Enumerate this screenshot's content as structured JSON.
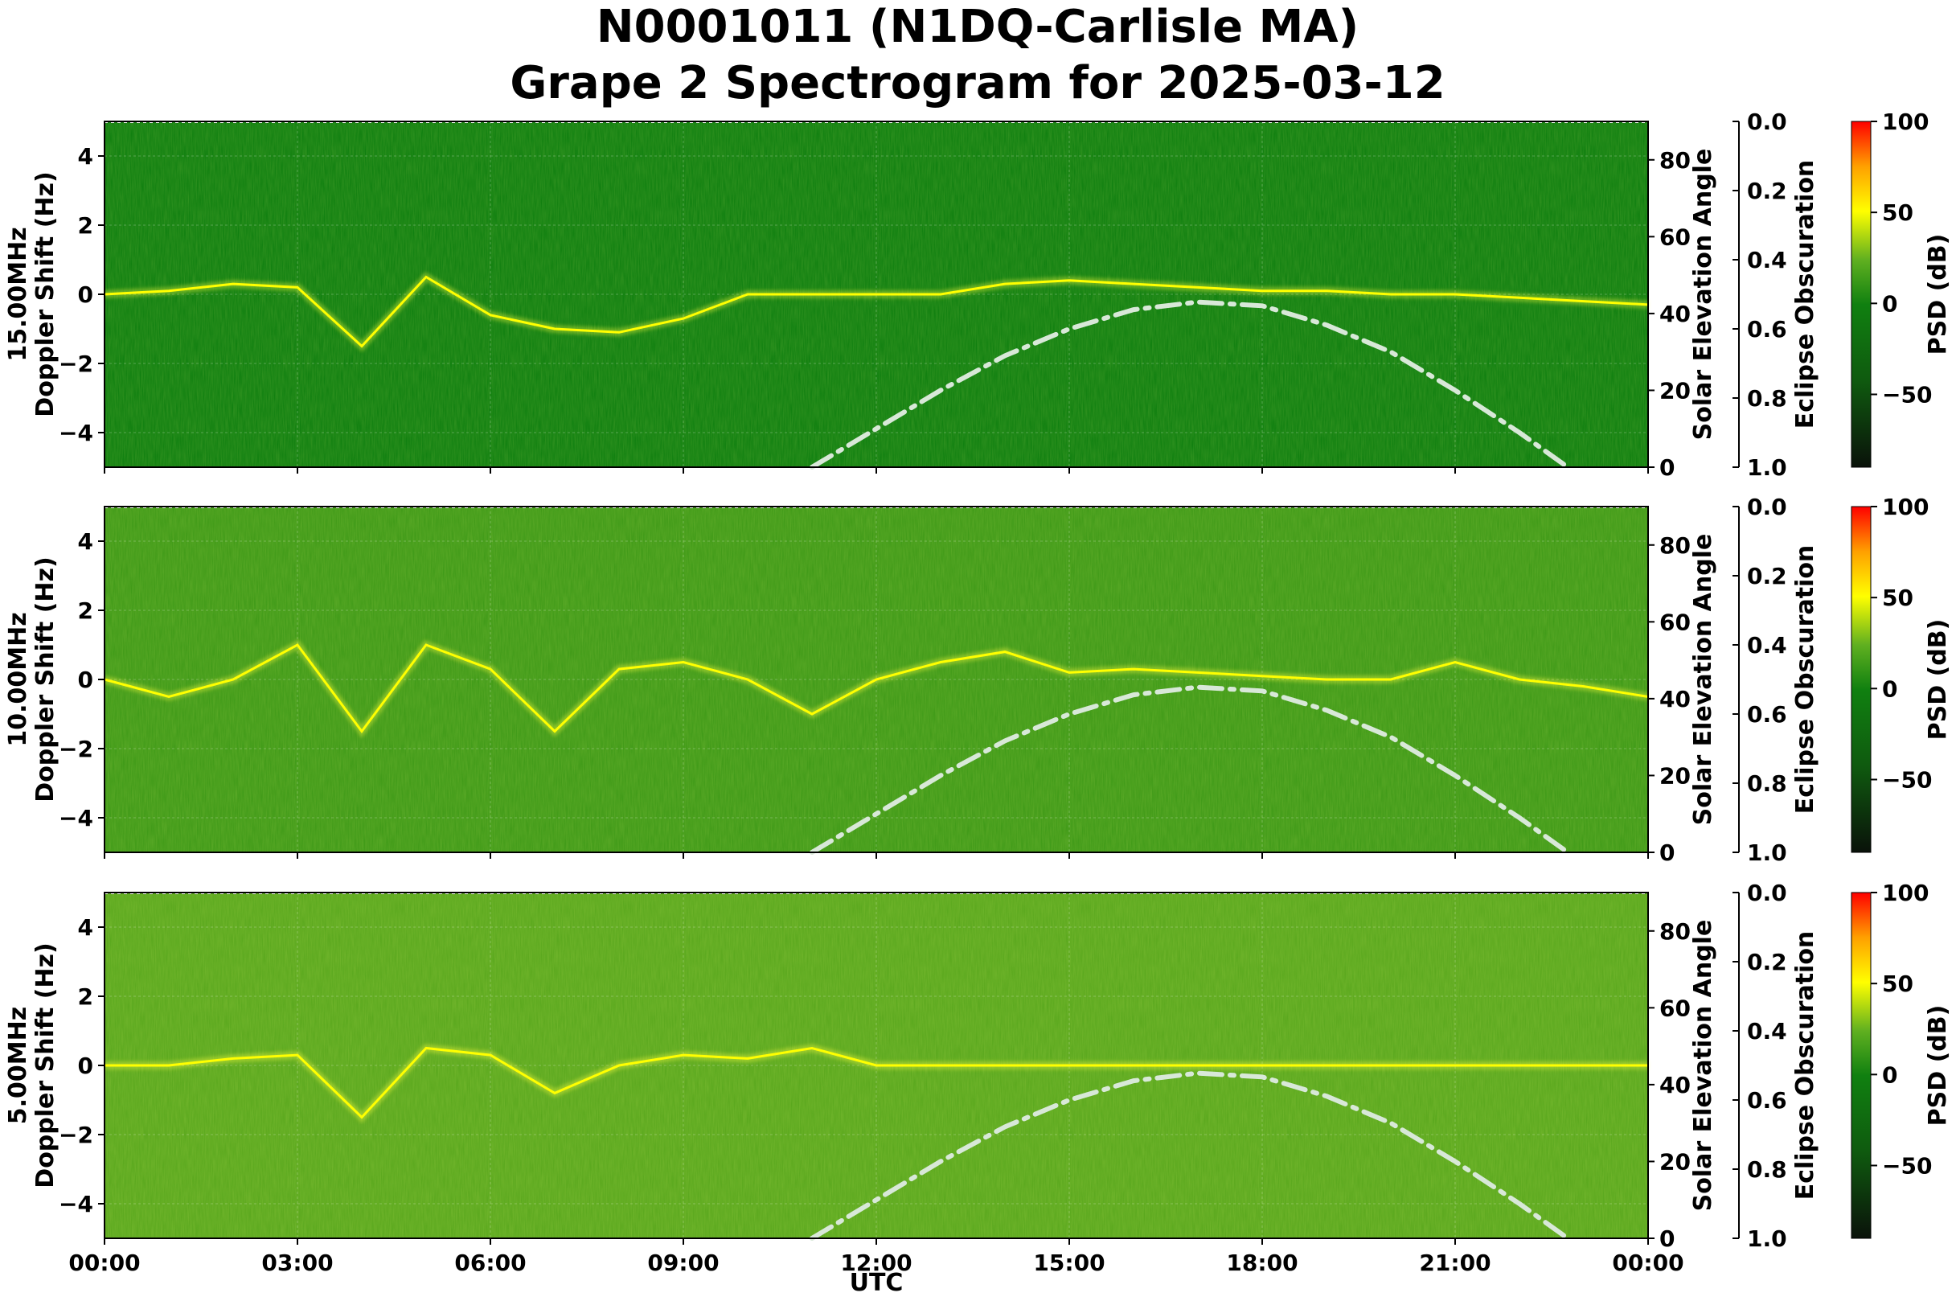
{
  "title_line1": "N0001011 (N1DQ-Carlisle MA)",
  "title_line2": "Grape 2 Spectrogram for 2025-03-12",
  "chart_data": [
    {
      "type": "heatmap",
      "panel": "15.00MHz",
      "ylabel_line1": "15.00MHz",
      "ylabel_line2": "Doppler Shift (Hz)",
      "ylim": [
        -5,
        5
      ],
      "yticks": [
        "4",
        "2",
        "0",
        "−2",
        "−4"
      ],
      "xticks": [
        "00:00",
        "03:00",
        "06:00",
        "09:00",
        "12:00",
        "15:00",
        "18:00",
        "21:00",
        "00:00"
      ],
      "doppler_trace": {
        "x": [
          0,
          1,
          2,
          3,
          4,
          5,
          6,
          7,
          8,
          9,
          10,
          11,
          12,
          13,
          14,
          15,
          16,
          17,
          18,
          19,
          20,
          21,
          22,
          23,
          24
        ],
        "y": [
          0,
          0.1,
          0.3,
          0.2,
          -1.5,
          0.5,
          -0.6,
          -1,
          -1.1,
          -0.7,
          0,
          0,
          0,
          0,
          0.3,
          0.4,
          0.3,
          0.2,
          0.1,
          0.1,
          0,
          0,
          -0.1,
          -0.2,
          -0.3
        ]
      },
      "secondary_axis": {
        "label": "Solar Elevation Angle",
        "ticks": [
          "0",
          "20",
          "40",
          "60",
          "80"
        ],
        "ylim": [
          0,
          90
        ]
      },
      "eclipse_axis": {
        "label": "Eclipse Obscuration",
        "ticks": [
          "0.0",
          "0.2",
          "0.4",
          "0.6",
          "0.8",
          "1.0"
        ]
      },
      "colorbar": {
        "label": "PSD (dB)",
        "ticks": [
          "100",
          "50",
          "0",
          "−50"
        ],
        "range": [
          -90,
          100
        ]
      },
      "background_color": "#0f7f10"
    },
    {
      "type": "heatmap",
      "panel": "10.00MHz",
      "ylabel_line1": "10.00MHz",
      "ylabel_line2": "Doppler Shift (Hz)",
      "ylim": [
        -5,
        5
      ],
      "yticks": [
        "4",
        "2",
        "0",
        "−2",
        "−4"
      ],
      "xticks": [
        "00:00",
        "03:00",
        "06:00",
        "09:00",
        "12:00",
        "15:00",
        "18:00",
        "21:00",
        "00:00"
      ],
      "doppler_trace": {
        "x": [
          0,
          1,
          2,
          3,
          4,
          5,
          6,
          7,
          8,
          9,
          10,
          11,
          12,
          13,
          14,
          15,
          16,
          17,
          18,
          19,
          20,
          21,
          22,
          23,
          24
        ],
        "y": [
          0,
          -0.5,
          0,
          1,
          -1.5,
          1,
          0.3,
          -1.5,
          0.3,
          0.5,
          0,
          -1,
          0,
          0.5,
          0.8,
          0.2,
          0.3,
          0.2,
          0.1,
          0,
          0,
          0.5,
          0,
          -0.2,
          -0.5
        ]
      },
      "secondary_axis": {
        "label": "Solar Elevation Angle",
        "ticks": [
          "0",
          "20",
          "40",
          "60",
          "80"
        ],
        "ylim": [
          0,
          90
        ]
      },
      "eclipse_axis": {
        "label": "Eclipse Obscuration",
        "ticks": [
          "0.0",
          "0.2",
          "0.4",
          "0.6",
          "0.8",
          "1.0"
        ]
      },
      "colorbar": {
        "label": "PSD (dB)",
        "ticks": [
          "100",
          "50",
          "0",
          "−50"
        ],
        "range": [
          -90,
          100
        ]
      },
      "background_color": "#3f9a18"
    },
    {
      "type": "heatmap",
      "panel": "5.00MHz",
      "ylabel_line1": "5.00MHz",
      "ylabel_line2": "Doppler Shift (Hz)",
      "ylim": [
        -5,
        5
      ],
      "yticks": [
        "4",
        "2",
        "0",
        "−2",
        "−4"
      ],
      "xticks": [
        "00:00",
        "03:00",
        "06:00",
        "09:00",
        "12:00",
        "15:00",
        "18:00",
        "21:00",
        "00:00"
      ],
      "xlabel": "UTC",
      "doppler_trace": {
        "x": [
          0,
          1,
          2,
          3,
          4,
          5,
          6,
          7,
          8,
          9,
          10,
          11,
          12,
          13,
          14,
          15,
          16,
          17,
          18,
          19,
          20,
          21,
          22,
          23,
          24
        ],
        "y": [
          0,
          0,
          0.2,
          0.3,
          -1.5,
          0.5,
          0.3,
          -0.8,
          0,
          0.3,
          0.2,
          0.5,
          0,
          0,
          0,
          0,
          0,
          0,
          0,
          0,
          0,
          0,
          0,
          0,
          0
        ]
      },
      "secondary_axis": {
        "label": "Solar Elevation Angle",
        "ticks": [
          "0",
          "20",
          "40",
          "60",
          "80"
        ],
        "ylim": [
          0,
          90
        ]
      },
      "eclipse_axis": {
        "label": "Eclipse Obscuration",
        "ticks": [
          "0.0",
          "0.2",
          "0.4",
          "0.6",
          "0.8",
          "1.0"
        ]
      },
      "colorbar": {
        "label": "PSD (dB)",
        "ticks": [
          "100",
          "50",
          "0",
          "−50"
        ],
        "range": [
          -90,
          100
        ]
      },
      "background_color": "#5aa81e"
    }
  ],
  "solar_elevation_curve": {
    "x": [
      11,
      12,
      13,
      14,
      15,
      16,
      17,
      18,
      19,
      20,
      21,
      22,
      22.75
    ],
    "y": [
      0,
      10,
      20,
      29,
      36,
      41,
      43,
      42,
      37,
      30,
      20,
      9,
      0
    ],
    "color": "#d8e8d8",
    "style": "dash-dot"
  },
  "colors": {
    "psd_low": "#0a1a0a",
    "psd_mid": "#0f7f10",
    "psd_high_yellow": "#ffff00",
    "psd_max": "#ff0000"
  },
  "xlabel": "UTC"
}
